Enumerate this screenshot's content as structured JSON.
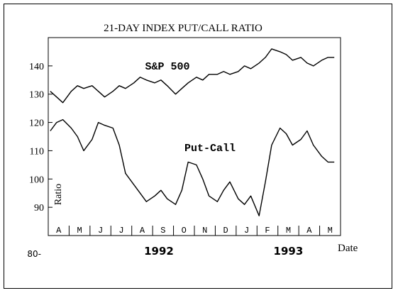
{
  "chart_data": {
    "type": "line",
    "title": "21-DAY INDEX PUT/CALL RATIO",
    "xlabel": "Date",
    "ylabel": "Ratio",
    "ylim": [
      80,
      150
    ],
    "yticks": [
      {
        "label": "140",
        "value": 140
      },
      {
        "label": "130",
        "value": 130
      },
      {
        "label": "120",
        "value": 120
      },
      {
        "label": "110",
        "value": 110
      },
      {
        "label": "100",
        "value": 100
      },
      {
        "label": "90",
        "value": 90
      },
      {
        "label": "80-",
        "value": 80
      }
    ],
    "months": [
      "A",
      "M",
      "J",
      "J",
      "A",
      "S",
      "O",
      "N",
      "D",
      "J",
      "F",
      "M",
      "A",
      "M"
    ],
    "year_labels": [
      "1992",
      "1993"
    ],
    "grid": false,
    "series": [
      {
        "name": "S&P 500",
        "x": [
          0,
          0.3,
          0.6,
          1,
          1.3,
          1.6,
          2,
          2.3,
          2.6,
          3,
          3.3,
          3.6,
          4,
          4.3,
          4.6,
          5,
          5.3,
          5.6,
          6,
          6.3,
          6.6,
          7,
          7.3,
          7.6,
          8,
          8.3,
          8.6,
          9,
          9.3,
          9.6,
          10,
          10.3,
          10.6,
          11,
          11.3,
          11.6,
          12,
          12.3,
          12.6,
          13,
          13.3,
          13.6
        ],
        "values": [
          131,
          129,
          127,
          131,
          133,
          132,
          133,
          131,
          129,
          131,
          133,
          132,
          134,
          136,
          135,
          134,
          135,
          133,
          130,
          132,
          134,
          136,
          135,
          137,
          137,
          138,
          137,
          138,
          140,
          139,
          141,
          143,
          146,
          145,
          144,
          142,
          143,
          141,
          140,
          142,
          143,
          143
        ]
      },
      {
        "name": "Put-Call",
        "x": [
          0,
          0.3,
          0.6,
          1,
          1.3,
          1.6,
          2,
          2.3,
          2.6,
          3,
          3.3,
          3.6,
          4,
          4.3,
          4.6,
          5,
          5.3,
          5.6,
          6,
          6.3,
          6.6,
          7,
          7.3,
          7.6,
          8,
          8.3,
          8.6,
          9,
          9.3,
          9.6,
          10,
          10.3,
          10.6,
          11,
          11.3,
          11.6,
          12,
          12.3,
          12.6,
          13,
          13.3,
          13.6
        ],
        "values": [
          117,
          120,
          121,
          118,
          115,
          110,
          114,
          120,
          119,
          118,
          112,
          102,
          98,
          95,
          92,
          94,
          96,
          93,
          91,
          96,
          106,
          105,
          100,
          94,
          92,
          96,
          99,
          93,
          91,
          94,
          87,
          99,
          112,
          118,
          116,
          112,
          114,
          117,
          112,
          108,
          106,
          106
        ]
      }
    ],
    "annotations": [
      "S&P 500",
      "Put-Call"
    ]
  }
}
